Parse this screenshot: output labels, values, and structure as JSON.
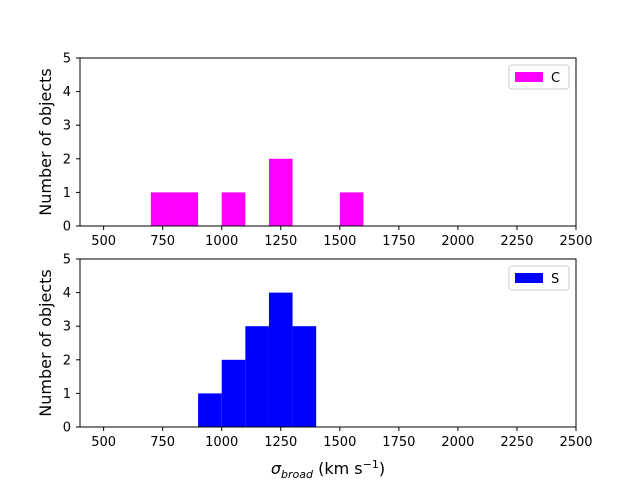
{
  "chart_data": [
    {
      "type": "bar",
      "subplot": "top",
      "xlabel": "",
      "ylabel": "Number of objects",
      "xlim": [
        400,
        2500
      ],
      "ylim": [
        0,
        5
      ],
      "xticks": [
        500,
        750,
        1000,
        1250,
        1500,
        1750,
        2000,
        2250,
        2500
      ],
      "yticks": [
        0,
        1,
        2,
        3,
        4,
        5
      ],
      "bin_width": 100,
      "legend_placement": "top-right",
      "series": [
        {
          "name": "C",
          "color": "#ff00ff",
          "bins": [
            {
              "x0": 700,
              "x1": 800,
              "count": 1
            },
            {
              "x0": 800,
              "x1": 900,
              "count": 1
            },
            {
              "x0": 1000,
              "x1": 1100,
              "count": 1
            },
            {
              "x0": 1200,
              "x1": 1300,
              "count": 2
            },
            {
              "x0": 1500,
              "x1": 1600,
              "count": 1
            }
          ]
        }
      ]
    },
    {
      "type": "bar",
      "subplot": "bottom",
      "xlabel_base": "σ",
      "xlabel_sub": "broad",
      "xlabel_unit_pre": " (km s",
      "xlabel_unit_sup": "−1",
      "xlabel_unit_post": ")",
      "ylabel": "Number of objects",
      "xlim": [
        400,
        2500
      ],
      "ylim": [
        0,
        5
      ],
      "xticks": [
        500,
        750,
        1000,
        1250,
        1500,
        1750,
        2000,
        2250,
        2500
      ],
      "yticks": [
        0,
        1,
        2,
        3,
        4,
        5
      ],
      "bin_width": 100,
      "legend_placement": "top-right",
      "series": [
        {
          "name": "S",
          "color": "#0000ff",
          "bins": [
            {
              "x0": 900,
              "x1": 1000,
              "count": 1
            },
            {
              "x0": 1000,
              "x1": 1100,
              "count": 2
            },
            {
              "x0": 1100,
              "x1": 1200,
              "count": 3
            },
            {
              "x0": 1200,
              "x1": 1300,
              "count": 4
            },
            {
              "x0": 1300,
              "x1": 1400,
              "count": 3
            }
          ]
        }
      ]
    }
  ]
}
